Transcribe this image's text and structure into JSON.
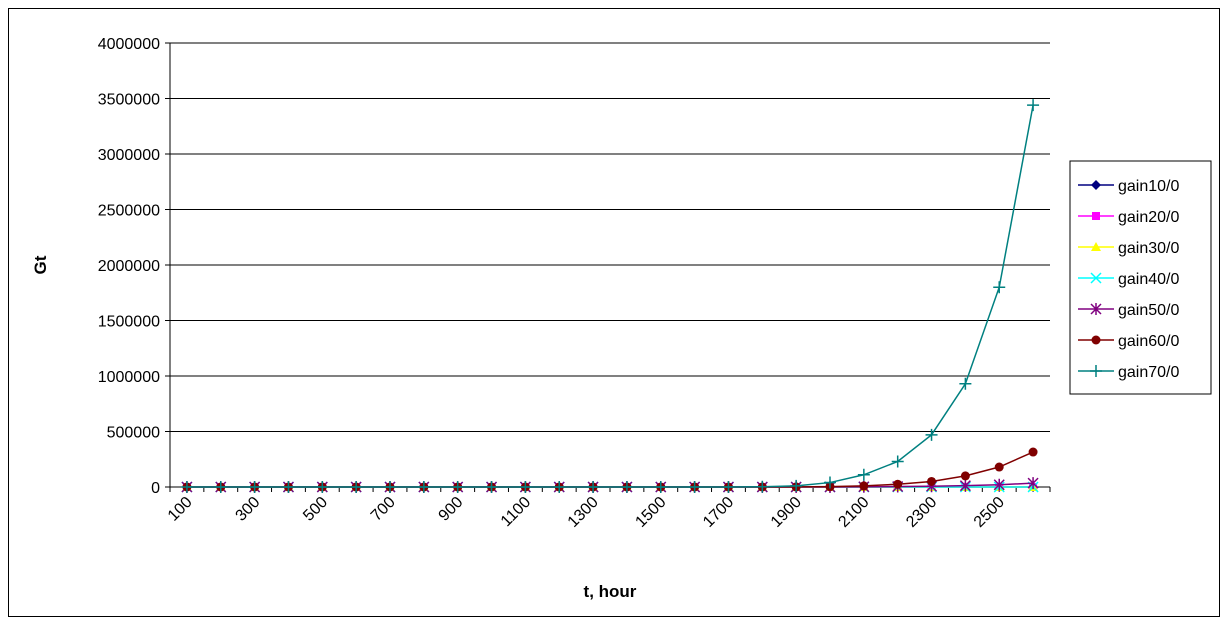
{
  "chart_data": {
    "type": "line",
    "title": "",
    "xlabel": "t, hour",
    "ylabel": "Gt",
    "ylim": [
      0,
      4000000
    ],
    "yticks": [
      "0",
      "500000",
      "1000000",
      "1500000",
      "2000000",
      "2500000",
      "3000000",
      "3500000",
      "4000000"
    ],
    "categories": [
      100,
      200,
      300,
      400,
      500,
      600,
      700,
      800,
      900,
      1000,
      1100,
      1200,
      1300,
      1400,
      1500,
      1600,
      1700,
      1800,
      1900,
      2000,
      2100,
      2200,
      2300,
      2400,
      2500,
      2600
    ],
    "xtick_labels": [
      "100",
      "300",
      "500",
      "700",
      "900",
      "1100",
      "1300",
      "1500",
      "1700",
      "1900",
      "2100",
      "2300",
      "2500"
    ],
    "grid": "horizontal",
    "legend": "right",
    "series": [
      {
        "name": "gain10/0",
        "color": "#000080",
        "marker": "diamond",
        "values": [
          0,
          0,
          0,
          0,
          0,
          0,
          0,
          0,
          0,
          0,
          0,
          0,
          0,
          0,
          0,
          0,
          0,
          0,
          0,
          0,
          0,
          0,
          0,
          0,
          0,
          0
        ]
      },
      {
        "name": "gain20/0",
        "color": "#ff00ff",
        "marker": "square",
        "values": [
          0,
          0,
          0,
          0,
          0,
          0,
          0,
          0,
          0,
          0,
          0,
          0,
          0,
          0,
          0,
          0,
          0,
          0,
          0,
          0,
          0,
          0,
          0,
          0,
          0,
          0
        ]
      },
      {
        "name": "gain30/0",
        "color": "#ffff00",
        "marker": "triangle",
        "values": [
          0,
          0,
          0,
          0,
          0,
          0,
          0,
          0,
          0,
          0,
          0,
          0,
          0,
          0,
          0,
          0,
          0,
          0,
          0,
          0,
          0,
          0,
          0,
          0,
          0,
          0
        ]
      },
      {
        "name": "gain40/0",
        "color": "#00ffff",
        "marker": "x",
        "values": [
          0,
          0,
          0,
          0,
          0,
          0,
          0,
          0,
          0,
          0,
          0,
          0,
          0,
          0,
          0,
          0,
          0,
          0,
          0,
          0,
          0,
          0,
          0,
          0,
          0,
          0
        ]
      },
      {
        "name": "gain50/0",
        "color": "#800080",
        "marker": "star",
        "values": [
          0,
          0,
          0,
          0,
          0,
          0,
          0,
          0,
          0,
          0,
          0,
          0,
          0,
          0,
          0,
          0,
          0,
          0,
          0,
          0,
          2000,
          4000,
          7000,
          12000,
          20000,
          35000
        ]
      },
      {
        "name": "gain60/0",
        "color": "#800000",
        "marker": "circle",
        "values": [
          0,
          0,
          0,
          0,
          0,
          0,
          0,
          0,
          0,
          0,
          0,
          0,
          0,
          0,
          0,
          0,
          0,
          0,
          1000,
          3000,
          10000,
          25000,
          50000,
          100000,
          180000,
          315000
        ]
      },
      {
        "name": "gain70/0",
        "color": "#008080",
        "marker": "plus",
        "values": [
          0,
          0,
          0,
          0,
          0,
          0,
          0,
          0,
          0,
          0,
          0,
          0,
          0,
          0,
          0,
          0,
          0,
          2000,
          10000,
          40000,
          110000,
          230000,
          470000,
          930000,
          1800000,
          3440000
        ]
      }
    ]
  }
}
